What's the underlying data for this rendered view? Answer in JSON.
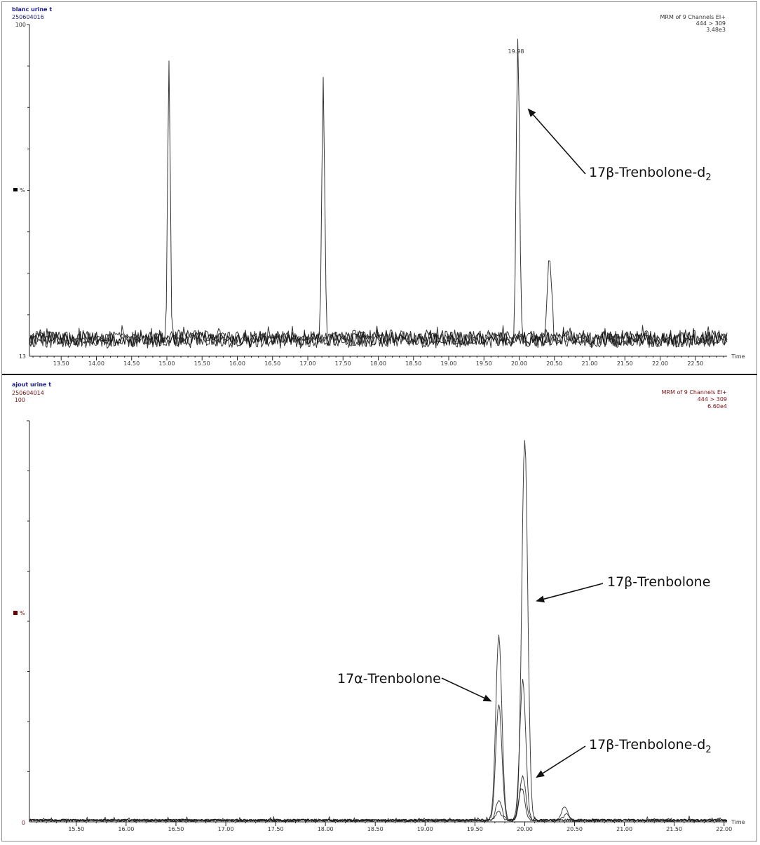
{
  "chart_data": [
    {
      "type": "line",
      "sample_name": "blanc urine t",
      "sample_id": "250604016",
      "header_right": [
        "MRM of 9 Channels EI+",
        "444 > 309",
        "3.48e3"
      ],
      "ylabel": "%",
      "xlabel": "Time",
      "y_top_label": "100",
      "y_bottom_label": "13",
      "ylim": [
        13,
        100
      ],
      "xlim": [
        13.05,
        22.95
      ],
      "x_ticks": [
        "13.50",
        "14.00",
        "14.50",
        "15.00",
        "15.50",
        "16.00",
        "16.50",
        "17.00",
        "17.50",
        "18.00",
        "18.50",
        "19.00",
        "19.50",
        "20.00",
        "20.50",
        "21.00",
        "21.50",
        "22.00",
        "22.50"
      ],
      "baseline": 17.5,
      "noise_amp": 2.4,
      "peak_label": "19.98",
      "peaks": [
        {
          "x": 15.03,
          "height": 91,
          "width": 0.018
        },
        {
          "x": 17.22,
          "height": 84,
          "width": 0.02
        },
        {
          "x": 19.98,
          "height": 92,
          "width": 0.022
        },
        {
          "x": 20.0,
          "height": 27,
          "width": 0.02
        },
        {
          "x": 20.43,
          "height": 39,
          "width": 0.03
        }
      ],
      "annotations": [
        {
          "text": "17β-Trenbolone-d",
          "sub": "2",
          "arrow_to": [
            20.12,
            78
          ]
        }
      ],
      "legend_color": "#000000",
      "text_color": "#1a1a8c"
    },
    {
      "type": "line",
      "sample_name": "ajout urine t",
      "sample_id": "250604014",
      "header_right": [
        "MRM of 9 Channels EI+",
        "444 > 309",
        "6.60e4"
      ],
      "ylabel": "%",
      "xlabel": "Time",
      "y_top_label": "100",
      "y_bottom_label": "0",
      "ylim": [
        0,
        100
      ],
      "xlim": [
        15.03,
        22.03
      ],
      "x_ticks": [
        "15.50",
        "16.00",
        "16.50",
        "17.00",
        "17.50",
        "18.00",
        "18.50",
        "19.00",
        "19.50",
        "20.00",
        "20.50",
        "21.00",
        "21.50",
        "22.00"
      ],
      "baseline": 0.4,
      "noise_amp": 0.3,
      "peak_traces": [
        [
          {
            "x": 19.74,
            "height": 46,
            "width": 0.03
          },
          {
            "x": 20.0,
            "height": 95,
            "width": 0.03
          },
          {
            "x": 20.4,
            "height": 3.5,
            "width": 0.03
          }
        ],
        [
          {
            "x": 19.74,
            "height": 29,
            "width": 0.03
          },
          {
            "x": 19.98,
            "height": 35,
            "width": 0.03
          },
          {
            "x": 20.42,
            "height": 1.5,
            "width": 0.03
          }
        ],
        [
          {
            "x": 19.74,
            "height": 5,
            "width": 0.03
          },
          {
            "x": 19.98,
            "height": 11,
            "width": 0.03
          }
        ],
        [
          {
            "x": 19.74,
            "height": 2,
            "width": 0.03
          },
          {
            "x": 19.97,
            "height": 8,
            "width": 0.03
          }
        ]
      ],
      "annotations": [
        {
          "text": "17β-Trenbolone",
          "sub": "",
          "arrow_to": [
            20.11,
            55
          ]
        },
        {
          "text": "17α-Trenbolone",
          "sub": "",
          "arrow_to": [
            19.67,
            30
          ]
        },
        {
          "text": "17β-Trenbolone-d",
          "sub": "2",
          "arrow_to": [
            20.11,
            11
          ]
        }
      ],
      "legend_color": "#6b0000",
      "text_color": "#7a1010"
    }
  ]
}
